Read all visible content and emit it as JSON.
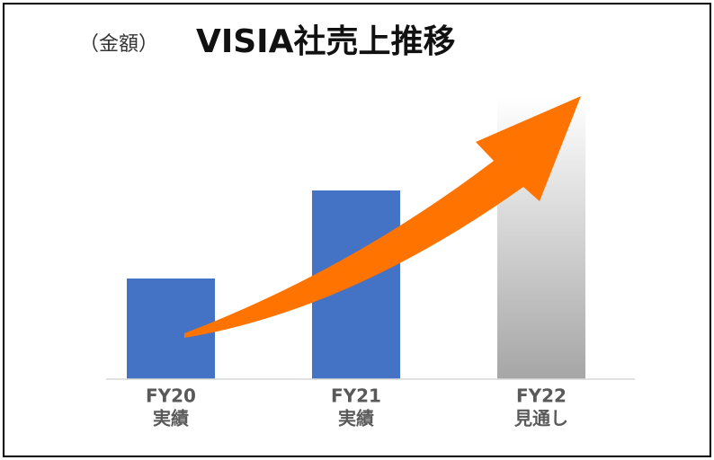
{
  "chart_data": {
    "type": "bar",
    "subtitle": "（金額）",
    "title": "VISIA社売上推移",
    "categories": [
      "FY20",
      "FY21",
      "FY22"
    ],
    "category_notes": [
      "実績",
      "実績",
      "見通し"
    ],
    "values": [
      112,
      210,
      314
    ],
    "colors": [
      "#4472c4",
      "#4472c4",
      "#a6a6a6"
    ],
    "ylim": [
      0,
      314
    ]
  }
}
